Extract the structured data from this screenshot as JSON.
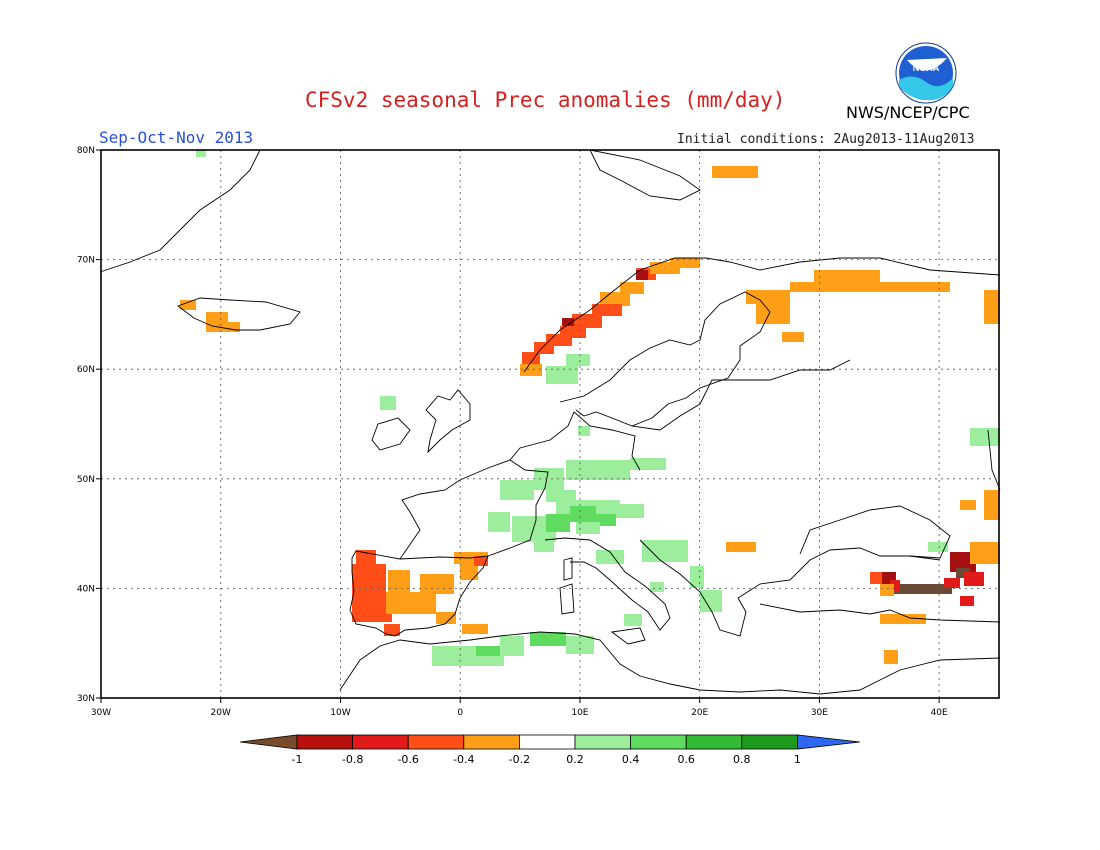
{
  "header": {
    "title": "CFSv2 seasonal Prec anomalies (mm/day)",
    "season": "Sep-Oct-Nov 2013",
    "initial_conditions": "Initial conditions: 2Aug2013-11Aug2013",
    "organization": "NWS/NCEP/CPC",
    "logo_text": "NOAA"
  },
  "map": {
    "lon_range": [
      -30,
      45
    ],
    "lat_range": [
      30,
      80
    ],
    "lon_ticks": [
      "30W",
      "20W",
      "10W",
      "0",
      "10E",
      "20E",
      "30E",
      "40E"
    ],
    "lat_ticks": [
      "80N",
      "70N",
      "60N",
      "50N",
      "40N",
      "30N"
    ],
    "grid_lines": "dotted"
  },
  "colorbar": {
    "labels": [
      "-1",
      "-0.8",
      "-0.6",
      "-0.4",
      "-0.2",
      "0.2",
      "0.4",
      "0.6",
      "0.8",
      "1"
    ],
    "colors": [
      "#7a4a2c",
      "#b80f0f",
      "#e21a1a",
      "#ff4e17",
      "#ff9f17",
      "#ffffff",
      "#9cee9c",
      "#5fdc5f",
      "#33bb33",
      "#1e9b1e",
      "#2f66ef"
    ]
  },
  "chart_data": {
    "type": "heatmap",
    "title": "CFSv2 seasonal Prec anomalies (mm/day)",
    "subtitle": "Sep-Oct-Nov 2013",
    "variable": "Precipitation anomaly",
    "units": "mm/day",
    "region": "Europe",
    "lon_range": [
      -30,
      45
    ],
    "lat_range": [
      30,
      80
    ],
    "anomaly_regions": [
      {
        "area": "Western Norway coast",
        "range": [
          -0.8,
          -0.4
        ]
      },
      {
        "area": "Iceland (west)",
        "range": [
          -0.4,
          -0.2
        ]
      },
      {
        "area": "Svalbard",
        "range": [
          -0.4,
          -0.2
        ]
      },
      {
        "area": "NW Russia / Kola",
        "range": [
          -0.4,
          -0.2
        ]
      },
      {
        "area": "Iberian Peninsula",
        "range": [
          -0.8,
          -0.2
        ]
      },
      {
        "area": "Eastern Turkey / Caucasus",
        "range": [
          -1.0,
          -0.6
        ]
      },
      {
        "area": "Central Europe / Alps",
        "range": [
          0.2,
          0.6
        ]
      },
      {
        "area": "Southern Norway / Sweden",
        "range": [
          0.2,
          0.4
        ]
      },
      {
        "area": "Italy / Adriatic",
        "range": [
          0.2,
          0.4
        ]
      },
      {
        "area": "North Africa (Algeria)",
        "range": [
          0.2,
          0.6
        ]
      }
    ]
  }
}
